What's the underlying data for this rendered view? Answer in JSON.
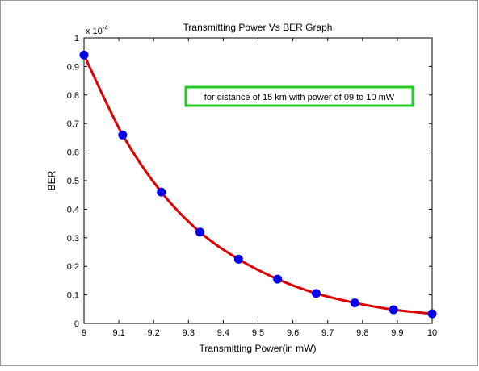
{
  "chart_data": {
    "type": "line",
    "title": "Transmitting Power Vs BER Graph",
    "xlabel": "Transmitting Power(in mW)",
    "ylabel": "BER",
    "y_multiplier": "x 10",
    "y_multiplier_exponent": "-4",
    "xlim": [
      9,
      10
    ],
    "ylim": [
      0,
      1
    ],
    "xticks": [
      "9",
      "9.1",
      "9.2",
      "9.3",
      "9.4",
      "9.5",
      "9.6",
      "9.7",
      "9.8",
      "9.9",
      "10"
    ],
    "yticks": [
      "0",
      "0.1",
      "0.2",
      "0.3",
      "0.4",
      "0.5",
      "0.6",
      "0.7",
      "0.8",
      "0.9",
      "1"
    ],
    "grid": false,
    "annotation": "for distance of 15 km with power of 09 to 10 mW",
    "series": [
      {
        "x": [
          9.0,
          9.111,
          9.222,
          9.333,
          9.444,
          9.556,
          9.667,
          9.778,
          9.889,
          10.0
        ],
        "values": [
          0.94,
          0.66,
          0.46,
          0.32,
          0.225,
          0.155,
          0.105,
          0.072,
          0.048,
          0.034
        ],
        "line_color": "#e00000",
        "marker_color": "#0000ee"
      }
    ]
  }
}
